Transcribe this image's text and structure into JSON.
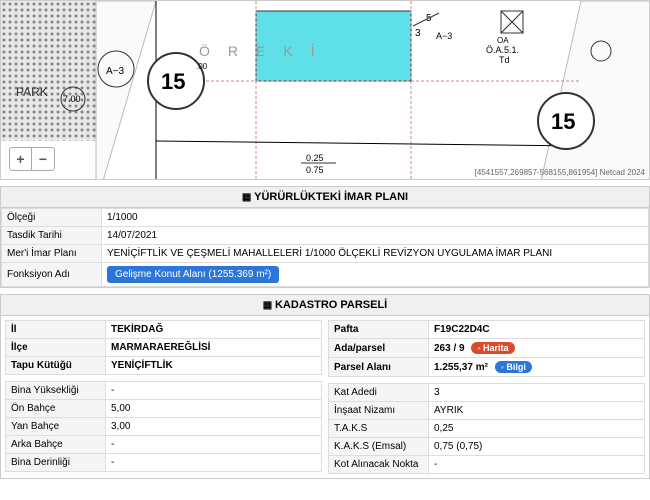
{
  "map": {
    "park_label": "PARK",
    "zoom_in": "+",
    "zoom_out": "−",
    "coords": "[4541557,269857-568155,861954] Netcad 2024",
    "zone_label": "A−3",
    "block_label": "Ö R E K İ",
    "oa_label": "OA\nÖ.A.5.1.\nTd",
    "circle_15_a": "15",
    "circle_15_b": "15",
    "num_7": "7.00",
    "num_025": "0.25",
    "num_075": "0.75",
    "num_5_3": "5\n3",
    "a3_frac": "A−3"
  },
  "imar": {
    "header": "YÜRÜRLÜKTEKİ İMAR PLANI",
    "rows": [
      {
        "label": "Ölçeği",
        "value": "1/1000"
      },
      {
        "label": "Tasdik Tarihi",
        "value": "14/07/2021"
      },
      {
        "label": "Mer'i İmar Planı",
        "value": "YENİÇİFTLİK VE ÇEŞMELİ MAHALLELERİ 1/1000 ÖLÇEKLİ REVİZYON UYGULAMA İMAR PLANI"
      }
    ],
    "fonksiyon_label": "Fonksiyon Adı",
    "fonksiyon_btn": "Gelişme Konut Alanı (1255.369 m²)"
  },
  "kadastro": {
    "header": "KADASTRO PARSELİ",
    "left_bold": [
      {
        "label": "İl",
        "value": "TEKİRDAĞ"
      },
      {
        "label": "İlçe",
        "value": "MARMARAEREĞLİSİ"
      },
      {
        "label": "Tapu Kütüğü",
        "value": "YENİÇİFTLİK"
      }
    ],
    "left_detail": [
      {
        "label": "Bina Yüksekliği",
        "value": "-"
      },
      {
        "label": "Ön Bahçe",
        "value": "5,00"
      },
      {
        "label": "Yan Bahçe",
        "value": "3,00"
      },
      {
        "label": "Arka Bahçe",
        "value": "-"
      },
      {
        "label": "Bina Derinliği",
        "value": "-"
      }
    ],
    "right_bold": [
      {
        "label": "Pafta",
        "value": "F19C22D4C"
      },
      {
        "label": "Ada/parsel",
        "value": "263 / 9",
        "badge": "Harita",
        "badge_type": "red"
      },
      {
        "label": "Parsel Alanı",
        "value": "1.255,37 m²",
        "badge": "Bilgi",
        "badge_type": "info"
      }
    ],
    "right_detail": [
      {
        "label": "Kat Adedi",
        "value": "3"
      },
      {
        "label": "İnşaat Nizamı",
        "value": "AYRIK"
      },
      {
        "label": "T.A.K.S",
        "value": "0,25"
      },
      {
        "label": "K.A.K.S (Emsal)",
        "value": "0,75 (0,75)"
      },
      {
        "label": "Kot Alınacak Nokta",
        "value": "-"
      }
    ]
  }
}
